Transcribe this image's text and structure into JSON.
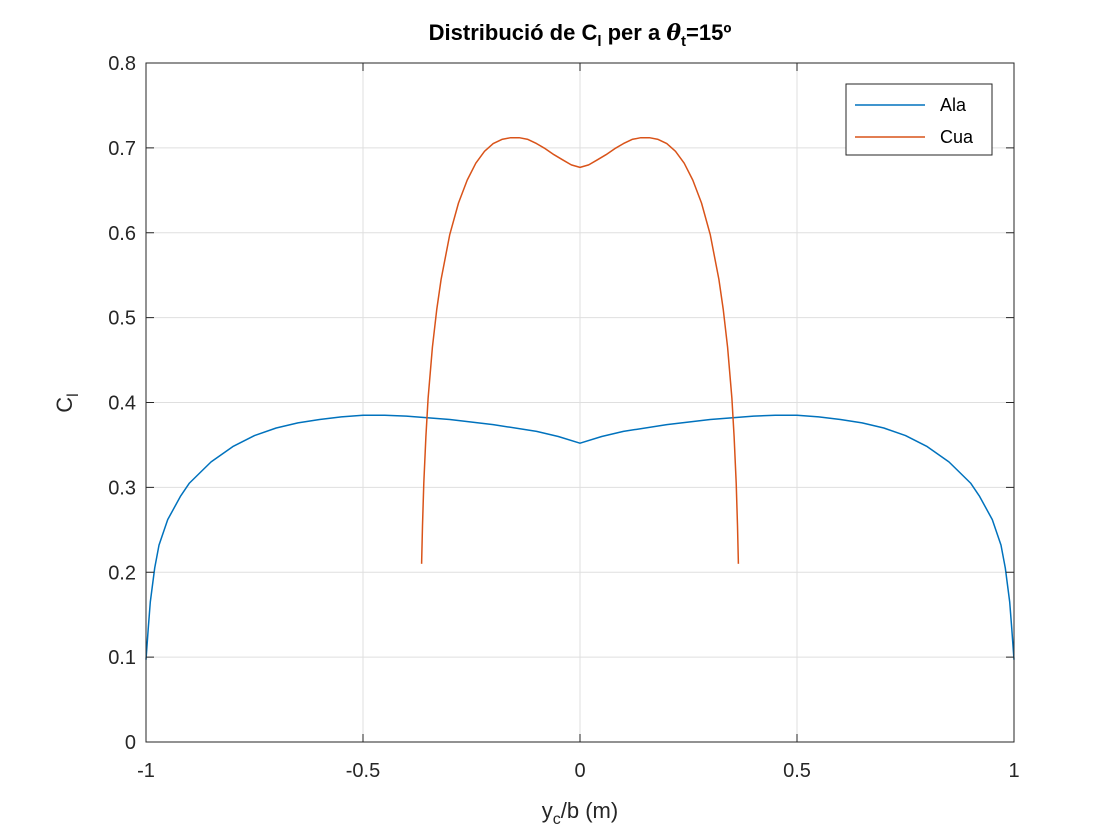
{
  "chart_data": {
    "type": "line",
    "title": {
      "prefix": "Distribució de C",
      "prefix_sub": "l",
      "middle": " per a ",
      "symbol": "θ",
      "symbol_sub": "t",
      "suffix": "=15º"
    },
    "xlabel": {
      "main": "y",
      "sub": "c",
      "rest": "/b (m)"
    },
    "ylabel": {
      "main": "C",
      "sub": "l"
    },
    "xlim": [
      -1,
      1
    ],
    "ylim": [
      0,
      0.8
    ],
    "xticks": [
      -1,
      -0.5,
      0,
      0.5,
      1
    ],
    "xtick_labels": [
      "-1",
      "-0.5",
      "0",
      "0.5",
      "1"
    ],
    "yticks": [
      0,
      0.1,
      0.2,
      0.3,
      0.4,
      0.5,
      0.6,
      0.7,
      0.8
    ],
    "ytick_labels": [
      "0",
      "0.1",
      "0.2",
      "0.3",
      "0.4",
      "0.5",
      "0.6",
      "0.7",
      "0.8"
    ],
    "grid": true,
    "legend_position": "top-right",
    "series": [
      {
        "name": "Ala",
        "color": "#0072BD",
        "x": [
          -1.0,
          -0.995,
          -0.99,
          -0.98,
          -0.97,
          -0.95,
          -0.92,
          -0.9,
          -0.87,
          -0.85,
          -0.8,
          -0.75,
          -0.7,
          -0.65,
          -0.6,
          -0.55,
          -0.5,
          -0.45,
          -0.4,
          -0.3,
          -0.2,
          -0.1,
          -0.05,
          0.0,
          0.05,
          0.1,
          0.2,
          0.3,
          0.4,
          0.45,
          0.5,
          0.55,
          0.6,
          0.65,
          0.7,
          0.75,
          0.8,
          0.85,
          0.87,
          0.9,
          0.92,
          0.95,
          0.97,
          0.98,
          0.99,
          0.995,
          1.0
        ],
        "y": [
          0.097,
          0.133,
          0.165,
          0.205,
          0.232,
          0.262,
          0.29,
          0.305,
          0.32,
          0.33,
          0.348,
          0.361,
          0.37,
          0.376,
          0.38,
          0.383,
          0.385,
          0.385,
          0.384,
          0.38,
          0.374,
          0.366,
          0.36,
          0.352,
          0.36,
          0.366,
          0.374,
          0.38,
          0.384,
          0.385,
          0.385,
          0.383,
          0.38,
          0.376,
          0.37,
          0.361,
          0.348,
          0.33,
          0.32,
          0.305,
          0.29,
          0.262,
          0.232,
          0.205,
          0.165,
          0.133,
          0.097
        ]
      },
      {
        "name": "Cua",
        "color": "#D95319",
        "x": [
          -0.365,
          -0.363,
          -0.36,
          -0.355,
          -0.35,
          -0.34,
          -0.33,
          -0.32,
          -0.3,
          -0.28,
          -0.26,
          -0.24,
          -0.22,
          -0.2,
          -0.18,
          -0.16,
          -0.14,
          -0.12,
          -0.1,
          -0.08,
          -0.06,
          -0.04,
          -0.02,
          0.0,
          0.02,
          0.04,
          0.06,
          0.08,
          0.1,
          0.12,
          0.14,
          0.16,
          0.18,
          0.2,
          0.22,
          0.24,
          0.26,
          0.28,
          0.3,
          0.32,
          0.33,
          0.34,
          0.35,
          0.355,
          0.36,
          0.363,
          0.365
        ],
        "y": [
          0.21,
          0.255,
          0.305,
          0.36,
          0.405,
          0.465,
          0.51,
          0.545,
          0.598,
          0.635,
          0.662,
          0.682,
          0.696,
          0.705,
          0.71,
          0.712,
          0.712,
          0.71,
          0.705,
          0.699,
          0.692,
          0.686,
          0.68,
          0.677,
          0.68,
          0.686,
          0.692,
          0.699,
          0.705,
          0.71,
          0.712,
          0.712,
          0.71,
          0.705,
          0.696,
          0.682,
          0.662,
          0.635,
          0.598,
          0.545,
          0.51,
          0.465,
          0.405,
          0.36,
          0.305,
          0.255,
          0.21
        ]
      }
    ]
  }
}
